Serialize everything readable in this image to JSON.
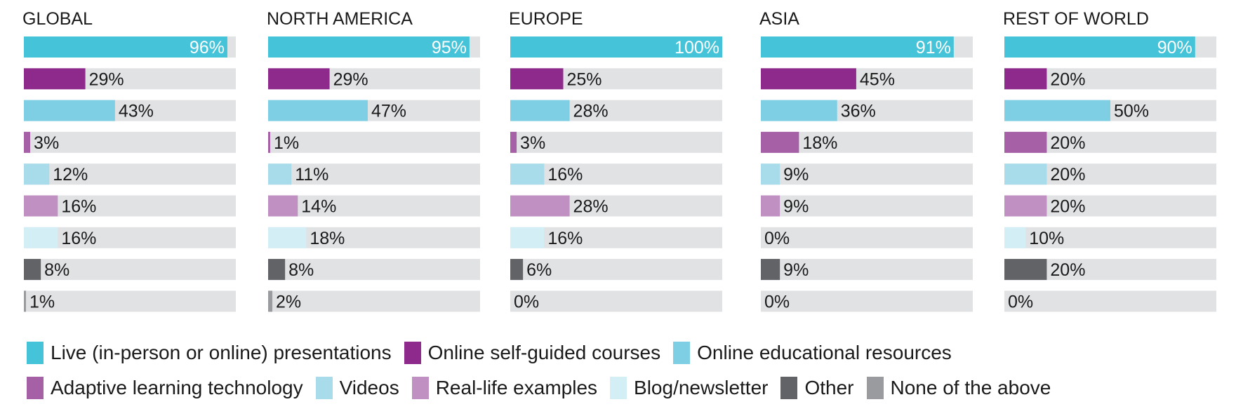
{
  "chart_data": {
    "type": "bar",
    "orientation": "horizontal",
    "xlim": [
      0,
      100
    ],
    "value_suffix": "%",
    "legend_placement": "bottom",
    "grid": false,
    "series": [
      {
        "name": "Live (in-person or online) presentations",
        "color": "#45c3d8"
      },
      {
        "name": "Online self-guided courses",
        "color": "#8e2a8c"
      },
      {
        "name": "Online educational resources",
        "color": "#7ecfe3"
      },
      {
        "name": "Adaptive learning technology",
        "color": "#a660a6"
      },
      {
        "name": "Videos",
        "color": "#a8dcea"
      },
      {
        "name": "Real-life examples",
        "color": "#c190c3"
      },
      {
        "name": "Blog/newsletter",
        "color": "#d4eef5"
      },
      {
        "name": "Other",
        "color": "#626366"
      },
      {
        "name": "None of the above",
        "color": "#9a9b9e"
      }
    ],
    "panels": [
      {
        "title": "GLOBAL",
        "values": [
          96,
          29,
          43,
          3,
          12,
          16,
          16,
          8,
          1
        ]
      },
      {
        "title": "NORTH AMERICA",
        "values": [
          95,
          29,
          47,
          1,
          11,
          14,
          18,
          8,
          2
        ]
      },
      {
        "title": "EUROPE",
        "values": [
          100,
          25,
          28,
          3,
          16,
          28,
          16,
          6,
          0
        ]
      },
      {
        "title": "ASIA",
        "values": [
          91,
          45,
          36,
          18,
          9,
          9,
          0,
          9,
          0
        ]
      },
      {
        "title": "REST OF WORLD",
        "values": [
          90,
          20,
          50,
          20,
          20,
          20,
          10,
          20,
          0
        ]
      }
    ],
    "track_color": "#e1e2e4"
  },
  "legend": {
    "rows": [
      [
        0,
        1,
        2
      ],
      [
        3,
        4,
        5,
        6,
        7,
        8
      ]
    ]
  }
}
